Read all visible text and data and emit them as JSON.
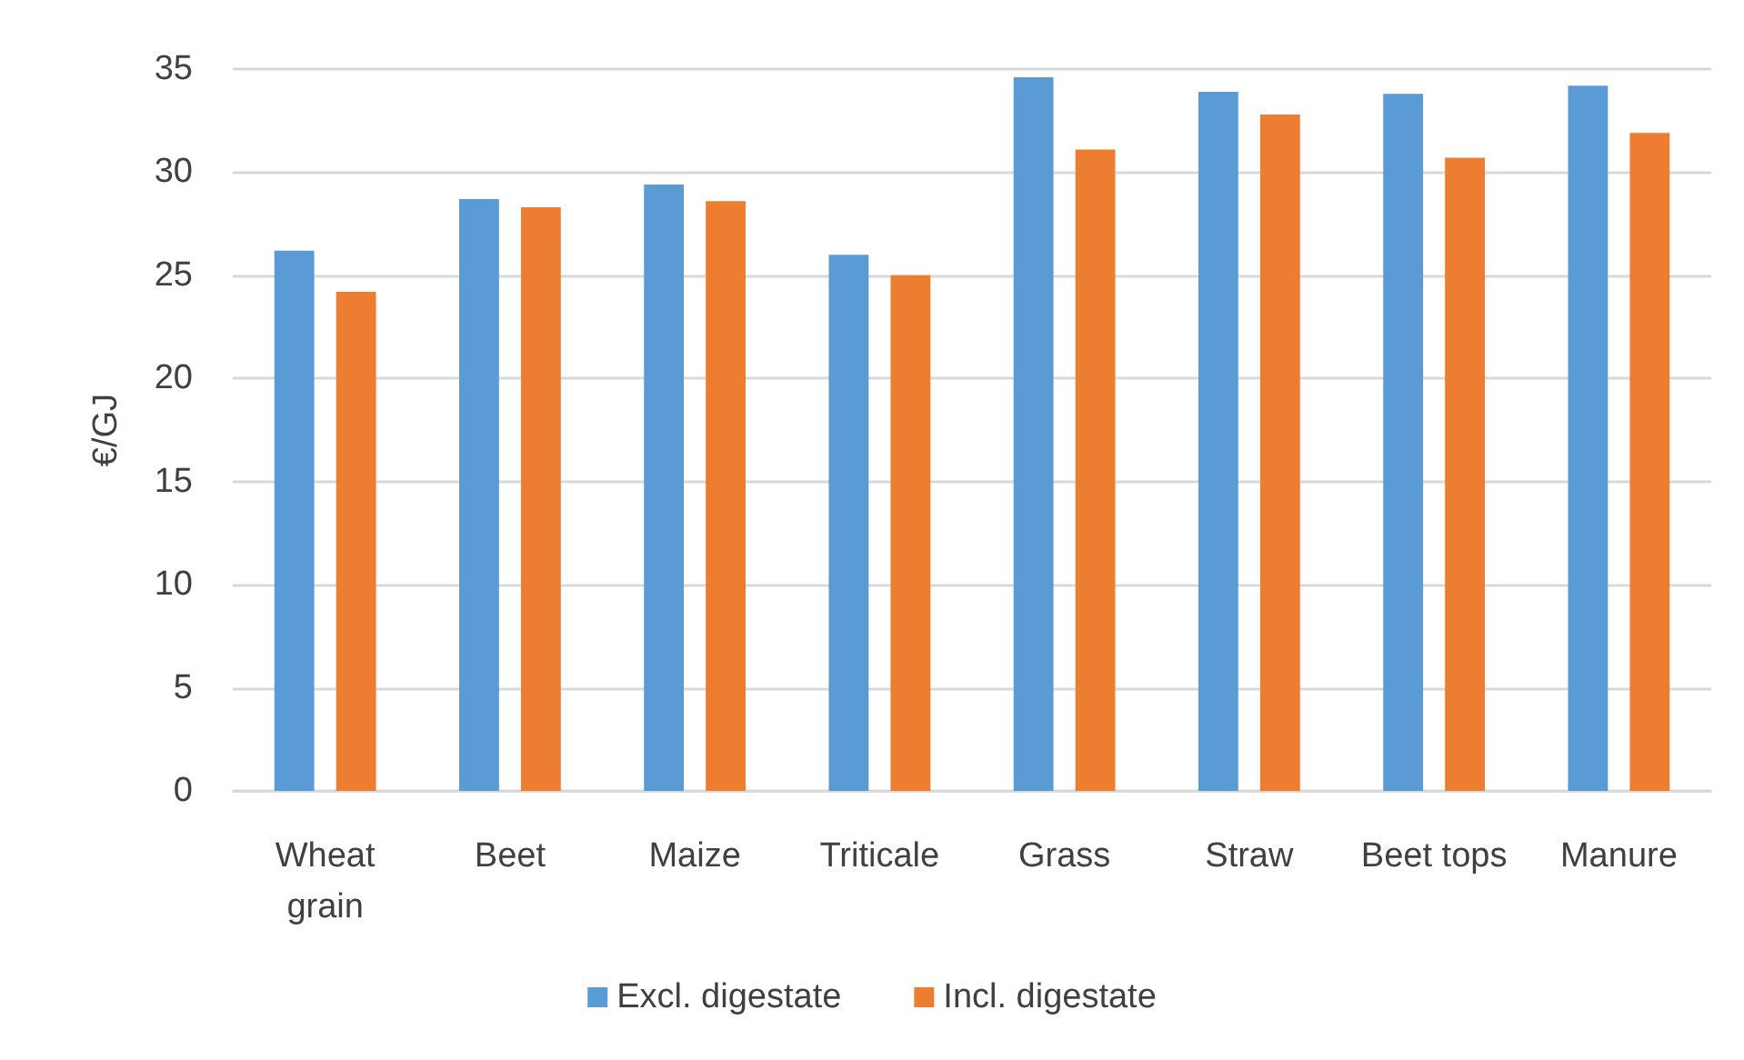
{
  "chart_data": {
    "type": "bar",
    "ylabel": "€/GJ",
    "categories": [
      "Wheat grain",
      "Beet",
      "Maize",
      "Triticale",
      "Grass",
      "Straw",
      "Beet tops",
      "Manure"
    ],
    "series": [
      {
        "name": "Excl. digestate",
        "color": "#5b9bd5",
        "values": [
          26.2,
          28.7,
          29.4,
          26.0,
          34.6,
          33.9,
          33.8,
          34.2
        ]
      },
      {
        "name": "Incl. digestate",
        "color": "#ed7d31",
        "values": [
          24.2,
          28.3,
          28.6,
          25.0,
          31.1,
          32.8,
          30.7,
          31.9
        ]
      }
    ],
    "ylim": [
      0,
      35
    ],
    "yticks": [
      0,
      5,
      10,
      15,
      20,
      25,
      30,
      35
    ],
    "grid": "y",
    "legend": "bottom"
  }
}
